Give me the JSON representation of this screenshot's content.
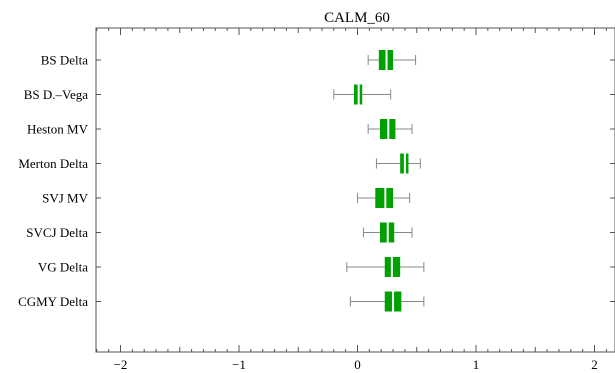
{
  "chart_data": {
    "type": "boxplot",
    "orientation": "horizontal",
    "title": "CALM_60",
    "xlabel": "",
    "ylabel": "",
    "xlim": [
      -2.2,
      2.1
    ],
    "x_ticks": [
      -2,
      -1,
      0,
      1,
      2
    ],
    "x_tick_labels": [
      "−2",
      "−1",
      "0",
      "1",
      "2"
    ],
    "grid": false,
    "legend": "none",
    "box_color": "#00a000",
    "median_color": "#ffffff",
    "whisker_color": "#888888",
    "categories": [
      "BS Delta",
      "BS D.–Vega",
      "Heston MV",
      "Merton Delta",
      "SVJ MV",
      "SVCJ Delta",
      "VG Delta",
      "CGMY Delta"
    ],
    "boxes": [
      {
        "label": "BS Delta",
        "whisker_low": 0.09,
        "q1": 0.18,
        "median": 0.245,
        "q3": 0.3,
        "whisker_high": 0.49
      },
      {
        "label": "BS D.–Vega",
        "whisker_low": -0.2,
        "q1": -0.03,
        "median": 0.01,
        "q3": 0.04,
        "whisker_high": 0.28
      },
      {
        "label": "Heston MV",
        "whisker_low": 0.09,
        "q1": 0.19,
        "median": 0.26,
        "q3": 0.32,
        "whisker_high": 0.46
      },
      {
        "label": "Merton Delta",
        "whisker_low": 0.16,
        "q1": 0.36,
        "median": 0.4,
        "q3": 0.43,
        "whisker_high": 0.53
      },
      {
        "label": "SVJ MV",
        "whisker_low": 0.0,
        "q1": 0.15,
        "median": 0.235,
        "q3": 0.3,
        "whisker_high": 0.44
      },
      {
        "label": "SVCJ Delta",
        "whisker_low": 0.05,
        "q1": 0.19,
        "median": 0.255,
        "q3": 0.31,
        "whisker_high": 0.46
      },
      {
        "label": "VG Delta",
        "whisker_low": -0.09,
        "q1": 0.23,
        "median": 0.29,
        "q3": 0.36,
        "whisker_high": 0.56
      },
      {
        "label": "CGMY Delta",
        "whisker_low": -0.06,
        "q1": 0.23,
        "median": 0.3,
        "q3": 0.37,
        "whisker_high": 0.56
      }
    ]
  }
}
